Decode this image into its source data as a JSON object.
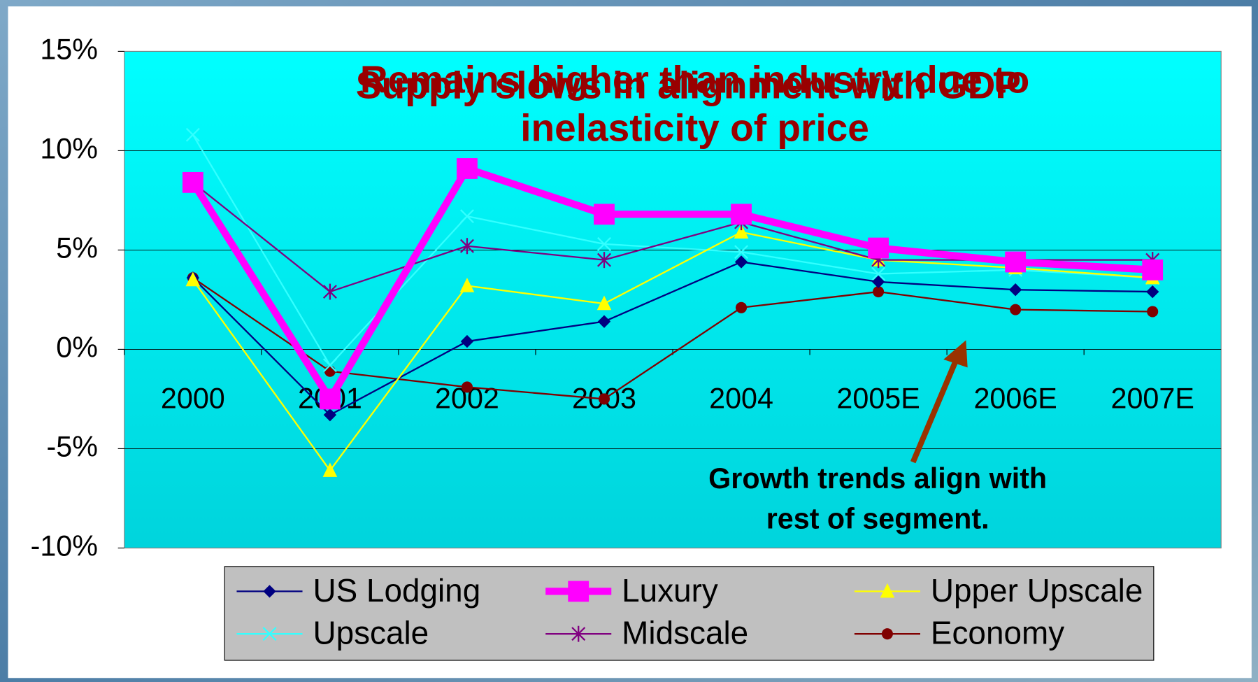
{
  "chart_data": {
    "type": "line",
    "title_lines": [
      "Remains higher than industry due to",
      "inelasticity of price"
    ],
    "overlapping_title": "Supply slows in alignment with GDP",
    "annotation_lines": [
      "Growth trends align with",
      "rest of segment."
    ],
    "categories": [
      "2000",
      "2001",
      "2002",
      "2003",
      "2004",
      "2005E",
      "2006E",
      "2007E"
    ],
    "series": [
      {
        "name": "US Lodging",
        "color": "#000080",
        "marker": "diamond",
        "values": [
          3.6,
          -3.3,
          0.4,
          1.4,
          4.4,
          3.4,
          3.0,
          2.9
        ]
      },
      {
        "name": "Luxury",
        "color": "#ff00ff",
        "marker": "square",
        "values": [
          8.4,
          -2.5,
          9.1,
          6.8,
          6.8,
          5.1,
          4.4,
          4.0
        ]
      },
      {
        "name": "Upper Upscale",
        "color": "#ffff00",
        "marker": "triangle",
        "values": [
          3.5,
          -6.1,
          3.2,
          2.3,
          5.9,
          4.5,
          4.1,
          3.6
        ]
      },
      {
        "name": "Upscale",
        "color": "#33ffff",
        "marker": "x",
        "values": [
          10.8,
          -0.8,
          6.7,
          5.3,
          4.9,
          3.8,
          4.0,
          3.6
        ]
      },
      {
        "name": "Midscale",
        "color": "#800080",
        "marker": "star",
        "values": [
          8.4,
          2.9,
          5.2,
          4.5,
          6.4,
          4.5,
          4.5,
          4.5
        ]
      },
      {
        "name": "Economy",
        "color": "#800000",
        "marker": "circle",
        "values": [
          3.6,
          -1.1,
          -1.9,
          -2.5,
          2.1,
          2.9,
          2.0,
          1.9
        ]
      }
    ],
    "ylim": [
      -10,
      15
    ],
    "yticks": [
      {
        "value": -10,
        "label": "-10%"
      },
      {
        "value": -5,
        "label": "-5%"
      },
      {
        "value": 0,
        "label": "0%"
      },
      {
        "value": 5,
        "label": "5%"
      },
      {
        "value": 10,
        "label": "10%"
      },
      {
        "value": 15,
        "label": "15%"
      }
    ],
    "grid": true
  }
}
